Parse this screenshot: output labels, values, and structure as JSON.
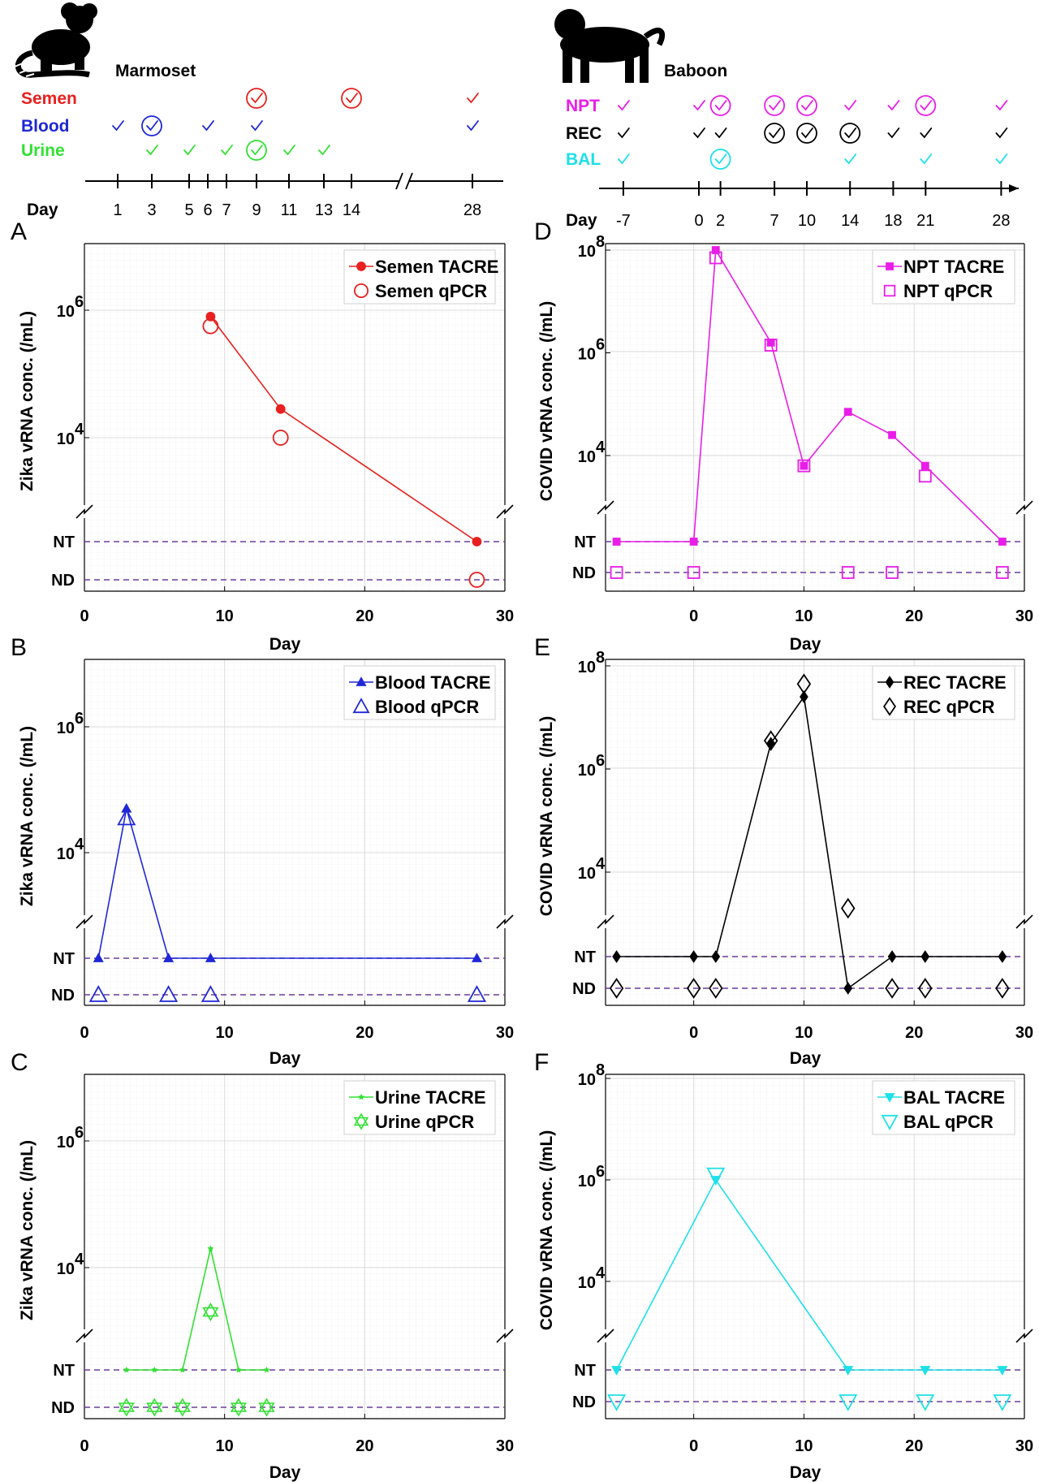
{
  "header": {
    "left_species": "Marmoset",
    "right_species": "Baboon"
  },
  "timeline_left": {
    "day_label": "Day",
    "ticks": [
      1,
      3,
      5,
      6,
      7,
      9,
      11,
      13,
      14,
      28
    ],
    "rows": [
      {
        "label": "Semen",
        "color": "#e8201f",
        "checks": [
          [
            9,
            "circle"
          ],
          [
            14,
            "circle"
          ],
          [
            28,
            "plain"
          ]
        ]
      },
      {
        "label": "Blood",
        "color": "#1f27d6",
        "checks": [
          [
            1,
            "plain"
          ],
          [
            3,
            "circle"
          ],
          [
            6,
            "plain"
          ],
          [
            9,
            "plain"
          ],
          [
            28,
            "plain"
          ]
        ]
      },
      {
        "label": "Urine",
        "color": "#32e032",
        "checks": [
          [
            3,
            "plain"
          ],
          [
            5,
            "plain"
          ],
          [
            7,
            "plain"
          ],
          [
            9,
            "circle"
          ],
          [
            11,
            "plain"
          ],
          [
            13,
            "plain"
          ]
        ]
      }
    ]
  },
  "timeline_right": {
    "day_label": "Day",
    "ticks": [
      -7,
      0,
      2,
      7,
      10,
      14,
      18,
      21,
      28
    ],
    "rows": [
      {
        "label": "NPT",
        "color": "#e81ee8",
        "checks": [
          [
            -7,
            "plain"
          ],
          [
            0,
            "plain"
          ],
          [
            2,
            "circle"
          ],
          [
            7,
            "circle"
          ],
          [
            10,
            "circle"
          ],
          [
            14,
            "plain"
          ],
          [
            18,
            "plain"
          ],
          [
            21,
            "circle"
          ],
          [
            28,
            "plain"
          ]
        ]
      },
      {
        "label": "REC",
        "color": "#000000",
        "checks": [
          [
            -7,
            "plain"
          ],
          [
            0,
            "plain"
          ],
          [
            2,
            "plain"
          ],
          [
            7,
            "circle"
          ],
          [
            10,
            "circle"
          ],
          [
            14,
            "circle"
          ],
          [
            18,
            "plain"
          ],
          [
            21,
            "plain"
          ],
          [
            28,
            "plain"
          ]
        ]
      },
      {
        "label": "BAL",
        "color": "#1ee0e8",
        "checks": [
          [
            -7,
            "plain"
          ],
          [
            2,
            "circle"
          ],
          [
            14,
            "plain"
          ],
          [
            21,
            "plain"
          ],
          [
            28,
            "plain"
          ]
        ]
      }
    ]
  },
  "chart_data": [
    {
      "panel": "A",
      "type": "line",
      "side": "left",
      "ylabel": "Zika vRNA conc. (/mL)",
      "xlabel": "Day",
      "xlim": [
        0,
        30
      ],
      "xticks": [
        0,
        10,
        20,
        30
      ],
      "ylim_log10": [
        2.5,
        7
      ],
      "yticks": [
        "10^4",
        "10^6"
      ],
      "baselines": [
        "NT",
        "ND"
      ],
      "color": "#e8201f",
      "marker": "circle",
      "series": [
        {
          "name": "Semen TACRE",
          "points": [
            [
              9,
              5.9
            ],
            [
              14,
              4.45
            ],
            [
              28,
              "NT"
            ]
          ]
        },
        {
          "name": "Semen qPCR",
          "points": [
            [
              9,
              5.75
            ],
            [
              14,
              4.0
            ],
            [
              28,
              "ND"
            ]
          ]
        }
      ]
    },
    {
      "panel": "B",
      "type": "line",
      "side": "left",
      "ylabel": "Zika vRNA conc. (/mL)",
      "xlabel": "Day",
      "xlim": [
        0,
        30
      ],
      "xticks": [
        0,
        10,
        20,
        30
      ],
      "ylim_log10": [
        2.5,
        7
      ],
      "yticks": [
        "10^4",
        "10^6"
      ],
      "baselines": [
        "NT",
        "ND"
      ],
      "color": "#1f27d6",
      "marker": "triangle",
      "series": [
        {
          "name": "Blood TACRE",
          "points": [
            [
              1,
              "NT"
            ],
            [
              3,
              4.7
            ],
            [
              6,
              "NT"
            ],
            [
              9,
              "NT"
            ],
            [
              28,
              "NT"
            ]
          ]
        },
        {
          "name": "Blood qPCR",
          "points": [
            [
              1,
              "ND"
            ],
            [
              3,
              4.55
            ],
            [
              6,
              "ND"
            ],
            [
              9,
              "ND"
            ],
            [
              28,
              "ND"
            ]
          ]
        }
      ]
    },
    {
      "panel": "C",
      "type": "line",
      "side": "left",
      "ylabel": "Zika vRNA conc. (/mL)",
      "xlabel": "Day",
      "xlim": [
        0,
        30
      ],
      "xticks": [
        0,
        10,
        20,
        30
      ],
      "ylim_log10": [
        2.5,
        7
      ],
      "yticks": [
        "10^4",
        "10^6"
      ],
      "baselines": [
        "NT",
        "ND"
      ],
      "color": "#32e032",
      "marker": "star",
      "series": [
        {
          "name": "Urine TACRE",
          "points": [
            [
              3,
              "NT"
            ],
            [
              5,
              "NT"
            ],
            [
              7,
              "NT"
            ],
            [
              9,
              4.3
            ],
            [
              11,
              "NT"
            ],
            [
              13,
              "NT"
            ]
          ]
        },
        {
          "name": "Urine qPCR",
          "points": [
            [
              3,
              "ND"
            ],
            [
              5,
              "ND"
            ],
            [
              7,
              "ND"
            ],
            [
              9,
              3.3
            ],
            [
              11,
              "ND"
            ],
            [
              13,
              "ND"
            ]
          ]
        }
      ]
    },
    {
      "panel": "D",
      "type": "line",
      "side": "right",
      "ylabel": "COVID vRNA conc. (/mL)",
      "xlabel": "Day",
      "xlim": [
        -8,
        30
      ],
      "xticks": [
        0,
        10,
        20,
        30
      ],
      "ylim_log10": [
        2.7,
        8
      ],
      "yticks": [
        "10^4",
        "10^6",
        "10^8"
      ],
      "baselines": [
        "NT",
        "ND"
      ],
      "color": "#e81ee8",
      "marker": "square",
      "series": [
        {
          "name": "NPT TACRE",
          "points": [
            [
              -7,
              "NT"
            ],
            [
              0,
              "NT"
            ],
            [
              2,
              8.0
            ],
            [
              7,
              6.2
            ],
            [
              10,
              3.8
            ],
            [
              14,
              4.85
            ],
            [
              18,
              4.4
            ],
            [
              21,
              3.8
            ],
            [
              28,
              "NT"
            ]
          ]
        },
        {
          "name": "NPT qPCR",
          "points": [
            [
              -7,
              "ND"
            ],
            [
              0,
              "ND"
            ],
            [
              2,
              7.85
            ],
            [
              7,
              6.15
            ],
            [
              10,
              3.8
            ],
            [
              14,
              "ND"
            ],
            [
              18,
              "ND"
            ],
            [
              21,
              3.6
            ],
            [
              28,
              "ND"
            ]
          ]
        }
      ]
    },
    {
      "panel": "E",
      "type": "line",
      "side": "right",
      "ylabel": "COVID vRNA conc. (/mL)",
      "xlabel": "Day",
      "xlim": [
        -8,
        30
      ],
      "xticks": [
        0,
        10,
        20,
        30
      ],
      "ylim_log10": [
        2.7,
        8
      ],
      "yticks": [
        "10^4",
        "10^6",
        "10^8"
      ],
      "baselines": [
        "NT",
        "ND"
      ],
      "color": "#000000",
      "marker": "diamond",
      "series": [
        {
          "name": "REC TACRE",
          "points": [
            [
              -7,
              "NT"
            ],
            [
              0,
              "NT"
            ],
            [
              2,
              "NT"
            ],
            [
              7,
              6.5
            ],
            [
              10,
              7.4
            ],
            [
              14,
              "ND"
            ],
            [
              18,
              "NT"
            ],
            [
              21,
              "NT"
            ],
            [
              28,
              "NT"
            ]
          ]
        },
        {
          "name": "REC qPCR",
          "points": [
            [
              -7,
              "ND"
            ],
            [
              0,
              "ND"
            ],
            [
              2,
              "ND"
            ],
            [
              7,
              6.55
            ],
            [
              10,
              7.65
            ],
            [
              14,
              3.3
            ],
            [
              18,
              "ND"
            ],
            [
              21,
              "ND"
            ],
            [
              28,
              "ND"
            ]
          ]
        }
      ]
    },
    {
      "panel": "F",
      "type": "line",
      "side": "right",
      "ylabel": "COVID vRNA conc. (/mL)",
      "xlabel": "Day",
      "xlim": [
        -8,
        30
      ],
      "xticks": [
        0,
        10,
        20,
        30
      ],
      "ylim_log10": [
        2.7,
        8
      ],
      "yticks": [
        "10^4",
        "10^6",
        "10^8"
      ],
      "baselines": [
        "NT",
        "ND"
      ],
      "color": "#1ee0e8",
      "marker": "triangle-down",
      "series": [
        {
          "name": "BAL TACRE",
          "points": [
            [
              -7,
              "NT"
            ],
            [
              2,
              6.0
            ],
            [
              14,
              "NT"
            ],
            [
              21,
              "NT"
            ],
            [
              28,
              "NT"
            ]
          ]
        },
        {
          "name": "BAL qPCR",
          "points": [
            [
              -7,
              "ND"
            ],
            [
              2,
              6.1
            ],
            [
              14,
              "ND"
            ],
            [
              21,
              "ND"
            ],
            [
              28,
              "ND"
            ]
          ]
        }
      ]
    }
  ]
}
